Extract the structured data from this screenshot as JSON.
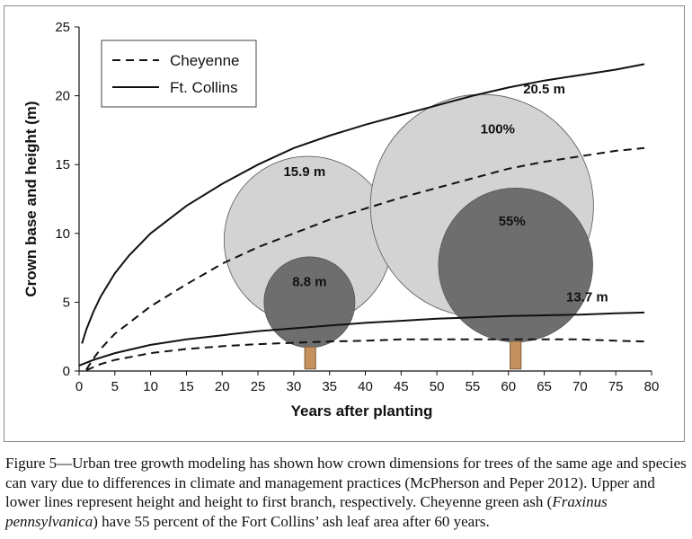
{
  "chart_data": {
    "type": "line",
    "xlabel": "Years after planting",
    "ylabel": "Crown base and height (m)",
    "xlim": [
      0,
      80
    ],
    "ylim": [
      0,
      25
    ],
    "x_ticks": [
      0,
      5,
      10,
      15,
      20,
      25,
      30,
      35,
      40,
      45,
      50,
      55,
      60,
      65,
      70,
      75,
      80
    ],
    "y_ticks": [
      0,
      5,
      10,
      15,
      20,
      25
    ],
    "grid": false,
    "legend_position": "top-left",
    "legend": [
      {
        "label": "Cheyenne",
        "style": "dashed"
      },
      {
        "label": "Ft. Collins",
        "style": "solid"
      }
    ],
    "series": [
      {
        "name": "Cheyenne",
        "role": "height",
        "style": "dashed",
        "x": [
          1,
          2,
          3,
          5,
          10,
          15,
          20,
          25,
          30,
          35,
          40,
          45,
          50,
          55,
          60,
          65,
          70,
          75,
          79
        ],
        "y": [
          0.1,
          0.9,
          1.6,
          2.7,
          4.7,
          6.3,
          7.8,
          9.0,
          10.0,
          11.0,
          11.8,
          12.6,
          13.3,
          14.0,
          14.7,
          15.2,
          15.6,
          16.0,
          16.2
        ]
      },
      {
        "name": "Cheyenne",
        "role": "height to first branch",
        "style": "dashed",
        "x": [
          1,
          3,
          5,
          10,
          15,
          20,
          25,
          30,
          35,
          40,
          45,
          50,
          55,
          60,
          65,
          70,
          75,
          79
        ],
        "y": [
          0.05,
          0.5,
          0.8,
          1.3,
          1.6,
          1.8,
          1.95,
          2.05,
          2.15,
          2.2,
          2.3,
          2.3,
          2.3,
          2.3,
          2.3,
          2.3,
          2.2,
          2.15
        ]
      },
      {
        "name": "Ft. Collins",
        "role": "height",
        "style": "solid",
        "x": [
          0.4,
          1,
          2,
          3,
          5,
          7,
          10,
          15,
          20,
          25,
          30,
          35,
          40,
          45,
          50,
          55,
          60,
          65,
          70,
          75,
          79
        ],
        "y": [
          2.0,
          3.0,
          4.3,
          5.4,
          7.1,
          8.4,
          10.0,
          12.0,
          13.6,
          15.0,
          16.2,
          17.1,
          17.9,
          18.6,
          19.3,
          20.0,
          20.6,
          21.1,
          21.5,
          21.9,
          22.3
        ]
      },
      {
        "name": "Ft. Collins",
        "role": "height to first branch",
        "style": "solid",
        "x": [
          0,
          2,
          5,
          10,
          15,
          20,
          25,
          30,
          35,
          40,
          45,
          50,
          55,
          60,
          65,
          70,
          75,
          79
        ],
        "y": [
          0.4,
          0.8,
          1.3,
          1.9,
          2.3,
          2.6,
          2.9,
          3.1,
          3.3,
          3.5,
          3.65,
          3.8,
          3.9,
          4.0,
          4.05,
          4.1,
          4.2,
          4.25
        ]
      }
    ],
    "trees": [
      {
        "name": "Ft. Collins at 30 years",
        "crown_center": [
          32,
          9.5
        ],
        "crown_radius_m": 6.1,
        "trunk_x": 32.3,
        "trunk_top": 3.2,
        "color": "#d3d3d3",
        "label": "15.9 m",
        "label_at": [
          31.5,
          14.5
        ]
      },
      {
        "name": "Cheyenne at 30 years",
        "crown_center": [
          32.2,
          5.0
        ],
        "crown_radius_m": 3.3,
        "trunk_x": 32.3,
        "trunk_top": 3.2,
        "color": "#6e6e6e",
        "label": "8.8 m",
        "label_at": [
          32.2,
          6.5
        ]
      },
      {
        "name": "Ft. Collins at 60 years",
        "crown_center": [
          56.3,
          12.0
        ],
        "crown_radius_m": 8.1,
        "trunk_x": 61.0,
        "trunk_top": 4.0,
        "color": "#d3d3d3",
        "label": "100%",
        "label_at": [
          58.5,
          17.6
        ]
      },
      {
        "name": "Cheyenne at 60 years",
        "crown_center": [
          61,
          7.7
        ],
        "crown_radius_m": 5.6,
        "trunk_x": 61.0,
        "trunk_top": 4.0,
        "color": "#6e6e6e",
        "label": "55%",
        "label_at": [
          60.5,
          10.9
        ]
      }
    ],
    "annotations": [
      {
        "text": "20.5 m",
        "at": [
          65,
          20.5
        ]
      },
      {
        "text": "13.7 m",
        "at": [
          71,
          5.4
        ]
      }
    ]
  },
  "caption": {
    "part1": "Figure 5—Urban tree growth modeling has shown how crown dimensions for trees of the same age and species can vary due to differences in climate and management practices (McPherson and Peper 2012). Upper and lower lines represent height and height to first branch, respectively. Cheyenne green ash (",
    "species": "Fraxinus pennsylvanica",
    "part2": ") have 55 percent of the Fort Collins’ ash leaf area after 60 years."
  }
}
